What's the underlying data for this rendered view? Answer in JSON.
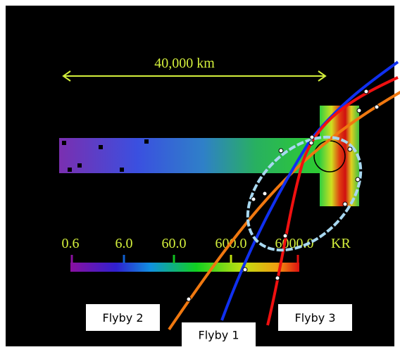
{
  "scale_label": "40,000 km",
  "colorbar": {
    "labels": [
      "0.6",
      "6.0",
      "60.0",
      "600.0",
      "6000.0"
    ],
    "unit": "KR"
  },
  "flybys": [
    "Flyby 2",
    "Flyby 1",
    "Flyby 3"
  ]
}
